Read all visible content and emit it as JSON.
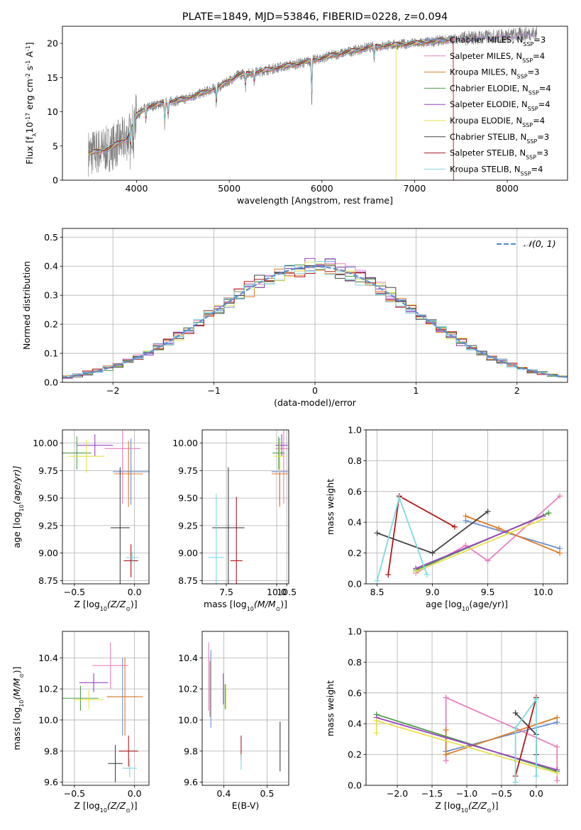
{
  "colors": {
    "miles_chab": "#6b8fd6",
    "miles_salp": "#e87fc0",
    "miles_krou": "#e07b22",
    "elod_chab": "#4a9e4a",
    "elod_salp": "#9b3fc4",
    "elod_krou": "#e6e14a",
    "stel_chab": "#444444",
    "stel_salp": "#b01818",
    "stel_krou": "#7dd9e0",
    "gauss": "#5b8fd6"
  },
  "chart_data": [
    {
      "id": "spectrum",
      "type": "line",
      "title": "PLATE=1849, MJD=53846, FIBERID=0228, z=0.094",
      "xlabel": "wavelength [Angstrom, rest frame]",
      "ylabel": "Flux [f",
      "ylabel_sub": "λ",
      "ylabel_mid": "10",
      "ylabel_exp": "-17",
      "ylabel_units": " erg cm",
      "ylabel_exp2": "-2",
      "ylabel_s": " s",
      "ylabel_exp3": "-1",
      "ylabel_a": " A",
      "ylabel_exp4": "-1",
      "ylabel_end": "]",
      "xlim": [
        3200,
        8650
      ],
      "ylim": [
        0,
        22.5
      ],
      "xticks": [
        "4000",
        "5000",
        "6000",
        "7000",
        "8000"
      ],
      "xtick_values": [
        4000,
        5000,
        6000,
        7000,
        8000
      ],
      "yticks": [
        "0",
        "5",
        "10",
        "15",
        "20"
      ],
      "ytick_values": [
        0,
        5,
        10,
        15,
        20
      ],
      "continuum": {
        "x": [
          3500,
          3700,
          3900,
          4000,
          4100,
          4300,
          4500,
          4700,
          4900,
          5100,
          5300,
          5500,
          5700,
          5900,
          6100,
          6300,
          6500,
          6700,
          6900,
          7100,
          7400,
          7700,
          8000,
          8300
        ],
        "y": [
          4.0,
          4.6,
          6.2,
          9.5,
          10.6,
          11.3,
          11.8,
          12.7,
          13.7,
          15.4,
          15.8,
          16.4,
          16.9,
          17.5,
          18.2,
          18.8,
          19.4,
          19.7,
          19.9,
          20.1,
          20.6,
          20.9,
          21.1,
          21.5
        ]
      },
      "legend": [
        {
          "label": "Chabrier MILES, N",
          "sub": "SSP",
          "tail": "=3",
          "color_key": "miles_chab"
        },
        {
          "label": "Salpeter MILES, N",
          "sub": "SSP",
          "tail": "=4",
          "color_key": "miles_salp"
        },
        {
          "label": "Kroupa MILES, N",
          "sub": "SSP",
          "tail": "=3",
          "color_key": "miles_krou"
        },
        {
          "label": "Chabrier ELODIE, N",
          "sub": "SSP",
          "tail": "=4",
          "color_key": "elod_chab"
        },
        {
          "label": "Salpeter ELODIE, N",
          "sub": "SSP",
          "tail": "=4",
          "color_key": "elod_salp"
        },
        {
          "label": "Kroupa ELODIE, N",
          "sub": "SSP",
          "tail": "=4",
          "color_key": "elod_krou"
        },
        {
          "label": "Chabrier STELIB, N",
          "sub": "SSP",
          "tail": "=3",
          "color_key": "stel_chab"
        },
        {
          "label": "Salpeter STELIB, N",
          "sub": "SSP",
          "tail": "=3",
          "color_key": "stel_salp"
        },
        {
          "label": "Kroupa STELIB, N",
          "sub": "SSP",
          "tail": "=4",
          "color_key": "stel_krou"
        }
      ]
    },
    {
      "id": "residuals",
      "type": "line",
      "xlabel": "(data-model)/error",
      "ylabel": "Normed distribution",
      "xlim": [
        -2.5,
        2.5
      ],
      "ylim": [
        0,
        0.53
      ],
      "xticks": [
        "−2",
        "−1",
        "0",
        "1",
        "2"
      ],
      "xtick_values": [
        -2,
        -1,
        0,
        1,
        2
      ],
      "yticks": [
        "0.0",
        "0.1",
        "0.2",
        "0.3",
        "0.4",
        "0.5"
      ],
      "ytick_values": [
        0,
        0.1,
        0.2,
        0.3,
        0.4,
        0.5
      ],
      "bin_width": 0.1,
      "gauss_legend": "𝒩(0, 1)",
      "grid": true
    },
    {
      "id": "age_vs_Z",
      "type": "scatter",
      "xlabel": "Z [log",
      "xlabel_sub": "10",
      "xlabel_tail": "(Z/Z",
      "xlabel_sub2": "⊙",
      "xlabel_end": ")]",
      "ylabel": "age  [log",
      "ylabel_sub": "10",
      "ylabel_tail": "(age/yr)]",
      "xlim": [
        -0.6,
        0.12
      ],
      "ylim": [
        8.72,
        10.12
      ],
      "xticks": [
        "−0.5",
        "0.0"
      ],
      "xtick_values": [
        -0.5,
        0.0
      ],
      "yticks": [
        "8.75",
        "9.00",
        "9.25",
        "9.50",
        "9.75",
        "10.00"
      ],
      "ytick_values": [
        8.75,
        9.0,
        9.25,
        9.5,
        9.75,
        10.0
      ],
      "grid": true,
      "points": [
        {
          "x": -0.03,
          "y": 9.74,
          "xerr": 0.15,
          "yerr": 0.3,
          "color_key": "miles_chab"
        },
        {
          "x": -0.1,
          "y": 9.95,
          "xerr": 0.15,
          "yerr": 0.5,
          "color_key": "miles_salp"
        },
        {
          "x": -0.05,
          "y": 9.72,
          "xerr": 0.12,
          "yerr": 0.3,
          "color_key": "miles_krou"
        },
        {
          "x": -0.48,
          "y": 9.91,
          "xerr": 0.12,
          "yerr": 0.15,
          "color_key": "elod_chab"
        },
        {
          "x": -0.33,
          "y": 9.98,
          "xerr": 0.15,
          "yerr": 0.1,
          "color_key": "elod_salp"
        },
        {
          "x": -0.4,
          "y": 9.88,
          "xerr": 0.15,
          "yerr": 0.15,
          "color_key": "elod_krou"
        },
        {
          "x": -0.12,
          "y": 9.23,
          "xerr": 0.08,
          "yerr": 0.55,
          "color_key": "stel_chab"
        },
        {
          "x": -0.03,
          "y": 8.93,
          "xerr": 0.06,
          "yerr": 0.15,
          "color_key": "stel_salp"
        },
        {
          "x": -0.02,
          "y": 8.96,
          "xerr": 0.05,
          "yerr": 0.05,
          "color_key": "stel_krou"
        }
      ]
    },
    {
      "id": "age_vs_mass",
      "type": "scatter",
      "xlabel": "mass [log",
      "xlabel_sub": "10",
      "xlabel_tail": "(M/M",
      "xlabel_sub2": "⊙",
      "xlabel_end": ")]",
      "xlim": [
        6.3,
        10.6
      ],
      "ylim": [
        8.72,
        10.12
      ],
      "xticks": [
        "7.5",
        "10.0",
        "10.5"
      ],
      "xtick_values": [
        7.5,
        10.0,
        10.5
      ],
      "yticks": [
        "8.75",
        "9.00",
        "9.25",
        "9.50",
        "9.75",
        "10.00"
      ],
      "ytick_values": [
        8.75,
        9.0,
        9.25,
        9.5,
        9.75,
        10.0
      ],
      "grid": true,
      "points": [
        {
          "x": 10.15,
          "y": 9.74,
          "xerr": 0.4,
          "yerr": 0.3,
          "color_key": "miles_chab"
        },
        {
          "x": 10.35,
          "y": 9.95,
          "xerr": 0.4,
          "yerr": 0.5,
          "color_key": "miles_salp"
        },
        {
          "x": 10.15,
          "y": 9.72,
          "xerr": 0.4,
          "yerr": 0.3,
          "color_key": "miles_krou"
        },
        {
          "x": 10.1,
          "y": 9.91,
          "xerr": 0.3,
          "yerr": 0.15,
          "color_key": "elod_chab"
        },
        {
          "x": 10.25,
          "y": 9.98,
          "xerr": 0.3,
          "yerr": 0.1,
          "color_key": "elod_salp"
        },
        {
          "x": 10.15,
          "y": 9.88,
          "xerr": 0.3,
          "yerr": 0.15,
          "color_key": "elod_krou"
        },
        {
          "x": 7.6,
          "y": 9.23,
          "xerr": 0.8,
          "yerr": 0.55,
          "color_key": "stel_chab"
        },
        {
          "x": 8.0,
          "y": 8.93,
          "xerr": 0.3,
          "yerr": 0.58,
          "color_key": "stel_salp"
        },
        {
          "x": 7.0,
          "y": 8.96,
          "xerr": 0.4,
          "yerr": 0.58,
          "color_key": "stel_krou"
        }
      ]
    },
    {
      "id": "weight_vs_age",
      "type": "line",
      "xlabel": "age  [log",
      "xlabel_sub": "10",
      "xlabel_tail": "(age/yr)]",
      "ylabel": "mass weight",
      "xlim": [
        8.4,
        10.22
      ],
      "ylim": [
        0,
        1.0
      ],
      "xticks": [
        "8.5",
        "9.0",
        "9.5",
        "10.0"
      ],
      "xtick_values": [
        8.5,
        9.0,
        9.5,
        10.0
      ],
      "yticks": [
        "0.0",
        "0.2",
        "0.4",
        "0.6",
        "0.8",
        "1.0"
      ],
      "ytick_values": [
        0,
        0.2,
        0.4,
        0.6,
        0.8,
        1.0
      ],
      "grid": true,
      "series": [
        {
          "color_key": "miles_chab",
          "x": [
            9.3,
            10.15
          ],
          "y": [
            0.41,
            0.23
          ]
        },
        {
          "color_key": "miles_salp",
          "x": [
            8.85,
            9.3,
            9.5,
            10.15
          ],
          "y": [
            0.07,
            0.25,
            0.15,
            0.57
          ]
        },
        {
          "color_key": "miles_krou",
          "x": [
            9.3,
            9.6,
            10.15
          ],
          "y": [
            0.44,
            0.36,
            0.2
          ]
        },
        {
          "color_key": "elod_chab",
          "x": [
            8.85,
            10.05
          ],
          "y": [
            0.09,
            0.46
          ]
        },
        {
          "color_key": "elod_salp",
          "x": [
            8.85,
            10.0
          ],
          "y": [
            0.1,
            0.44
          ]
        },
        {
          "color_key": "elod_krou",
          "x": [
            8.85,
            10.0
          ],
          "y": [
            0.08,
            0.42
          ]
        },
        {
          "color_key": "stel_chab",
          "x": [
            8.5,
            9.0,
            9.5
          ],
          "y": [
            0.33,
            0.2,
            0.47
          ]
        },
        {
          "color_key": "stel_salp",
          "x": [
            8.6,
            8.7,
            9.2
          ],
          "y": [
            0.06,
            0.57,
            0.37
          ]
        },
        {
          "color_key": "stel_krou",
          "x": [
            8.5,
            8.7,
            8.95
          ],
          "y": [
            0.02,
            0.56,
            0.06
          ]
        }
      ]
    },
    {
      "id": "mass_vs_Z",
      "type": "scatter",
      "xlabel": "Z [log",
      "xlabel_sub": "10",
      "xlabel_tail": "(Z/Z",
      "xlabel_sub2": "⊙",
      "xlabel_end": ")]",
      "ylabel": "mass [log",
      "ylabel_sub": "10",
      "ylabel_tail": "(M/M",
      "ylabel_sub2": "⊙",
      "ylabel_end": ")]",
      "xlim": [
        -0.6,
        0.12
      ],
      "ylim": [
        9.58,
        10.57
      ],
      "xticks": [
        "−0.5",
        "0.0"
      ],
      "xtick_values": [
        -0.5,
        0.0
      ],
      "yticks": [
        "9.6",
        "9.8",
        "10.0",
        "10.2",
        "10.4"
      ],
      "ytick_values": [
        9.6,
        9.8,
        10.0,
        10.2,
        10.4
      ],
      "grid": true,
      "points": [
        {
          "x": -0.1,
          "y": 10.15,
          "xerr": 0.12,
          "yerr": 0.25,
          "color_key": "miles_chab"
        },
        {
          "x": -0.2,
          "y": 10.35,
          "xerr": 0.15,
          "yerr": 0.15,
          "color_key": "miles_salp"
        },
        {
          "x": -0.08,
          "y": 10.15,
          "xerr": 0.15,
          "yerr": 0.25,
          "color_key": "miles_krou"
        },
        {
          "x": -0.45,
          "y": 10.14,
          "xerr": 0.15,
          "yerr": 0.08,
          "color_key": "elod_chab"
        },
        {
          "x": -0.34,
          "y": 10.24,
          "xerr": 0.12,
          "yerr": 0.06,
          "color_key": "elod_salp"
        },
        {
          "x": -0.38,
          "y": 10.13,
          "xerr": 0.12,
          "yerr": 0.06,
          "color_key": "elod_krou"
        },
        {
          "x": -0.16,
          "y": 9.72,
          "xerr": 0.06,
          "yerr": 0.12,
          "color_key": "stel_chab"
        },
        {
          "x": -0.05,
          "y": 9.8,
          "xerr": 0.08,
          "yerr": 0.1,
          "color_key": "stel_salp"
        },
        {
          "x": -0.04,
          "y": 9.69,
          "xerr": 0.06,
          "yerr": 0.06,
          "color_key": "stel_krou"
        }
      ]
    },
    {
      "id": "mass_vs_ebv",
      "type": "scatter",
      "xlabel": "E(B-V)",
      "xlim": [
        0.35,
        0.55
      ],
      "ylim": [
        9.58,
        10.57
      ],
      "xticks": [
        "0.4",
        "0.5"
      ],
      "xtick_values": [
        0.4,
        0.5
      ],
      "yticks": [
        "9.6",
        "9.8",
        "10.0",
        "10.2",
        "10.4"
      ],
      "ytick_values": [
        9.6,
        9.8,
        10.0,
        10.2,
        10.4
      ],
      "grid": true,
      "points": [
        {
          "x": 0.37,
          "y": 10.2,
          "xerr": 0,
          "yerr": 0.25,
          "color_key": "miles_chab"
        },
        {
          "x": 0.365,
          "y": 10.28,
          "xerr": 0,
          "yerr": 0.22,
          "color_key": "miles_salp"
        },
        {
          "x": 0.368,
          "y": 10.2,
          "xerr": 0,
          "yerr": 0.18,
          "color_key": "miles_krou"
        },
        {
          "x": 0.403,
          "y": 10.15,
          "xerr": 0,
          "yerr": 0.08,
          "color_key": "elod_chab"
        },
        {
          "x": 0.399,
          "y": 10.2,
          "xerr": 0,
          "yerr": 0.1,
          "color_key": "elod_salp"
        },
        {
          "x": 0.405,
          "y": 10.15,
          "xerr": 0,
          "yerr": 0.08,
          "color_key": "elod_krou"
        },
        {
          "x": 0.53,
          "y": 9.83,
          "xerr": 0,
          "yerr": 0.16,
          "color_key": "stel_chab"
        },
        {
          "x": 0.44,
          "y": 9.82,
          "xerr": 0,
          "yerr": 0.08,
          "color_key": "stel_salp"
        },
        {
          "x": 0.44,
          "y": 9.73,
          "xerr": 0,
          "yerr": 0.05,
          "color_key": "stel_krou"
        }
      ]
    },
    {
      "id": "weight_vs_Z",
      "type": "line",
      "xlabel": "Z [log",
      "xlabel_sub": "10",
      "xlabel_tail": "(Z/Z",
      "xlabel_sub2": "⊙",
      "xlabel_end": ")]",
      "ylabel": "mass weight",
      "xlim": [
        -2.45,
        0.45
      ],
      "ylim": [
        0,
        1.0
      ],
      "xticks": [
        "−2.0",
        "−1.5",
        "−1.0",
        "−0.5",
        "0.0"
      ],
      "xtick_values": [
        -2.0,
        -1.5,
        -1.0,
        -0.5,
        0.0
      ],
      "yticks": [
        "0.0",
        "0.2",
        "0.4",
        "0.6",
        "0.8",
        "1.0"
      ],
      "ytick_values": [
        0,
        0.2,
        0.4,
        0.6,
        0.8,
        1.0
      ],
      "grid": true,
      "series": [
        {
          "color_key": "miles_chab",
          "x": [
            -1.3,
            0.3
          ],
          "y": [
            0.22,
            0.41
          ]
        },
        {
          "color_key": "miles_salp",
          "x": [
            -1.3,
            -1.3,
            0.3,
            0.3
          ],
          "y": [
            0.16,
            0.57,
            0.25,
            0.03
          ]
        },
        {
          "color_key": "miles_krou",
          "x": [
            -1.3,
            -1.3,
            0.3
          ],
          "y": [
            0.36,
            0.2,
            0.44
          ]
        },
        {
          "color_key": "elod_chab",
          "x": [
            -2.3,
            0.3
          ],
          "y": [
            0.46,
            0.09
          ]
        },
        {
          "color_key": "elod_salp",
          "x": [
            -2.3,
            0.3
          ],
          "y": [
            0.44,
            0.1
          ]
        },
        {
          "color_key": "elod_krou",
          "x": [
            -2.3,
            -2.3,
            0.3
          ],
          "y": [
            0.34,
            0.42,
            0.08
          ]
        },
        {
          "color_key": "stel_chab",
          "x": [
            -0.3,
            0.0,
            0.0
          ],
          "y": [
            0.47,
            0.33,
            0.2
          ]
        },
        {
          "color_key": "stel_salp",
          "x": [
            -0.3,
            0.0
          ],
          "y": [
            0.06,
            0.57
          ]
        },
        {
          "color_key": "stel_krou",
          "x": [
            -0.3,
            -0.3,
            0.0,
            0.0
          ],
          "y": [
            0.02,
            0.37,
            0.56,
            0.06
          ]
        }
      ]
    }
  ]
}
